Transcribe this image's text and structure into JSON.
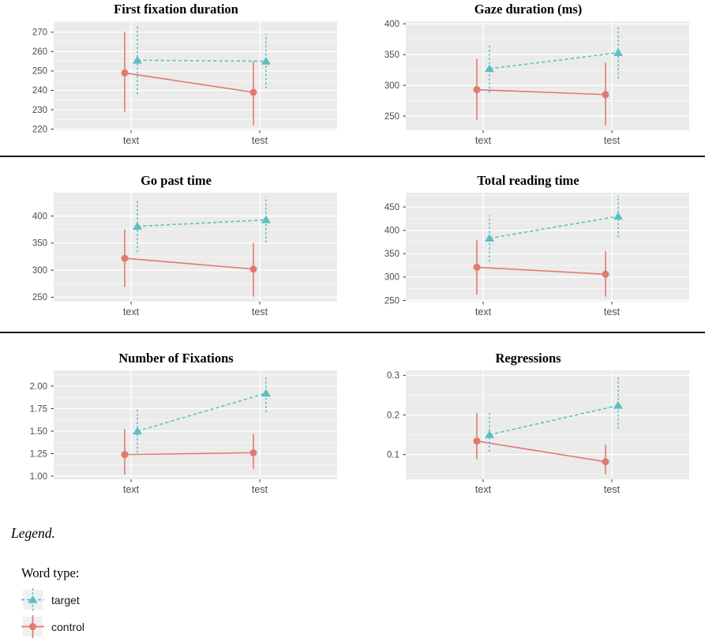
{
  "colors": {
    "target": "#5bbfc4",
    "control": "#e07a70",
    "panel_background": "#ebebeb",
    "gridline_major": "#ffffff",
    "gridline_minor": "#f5f5f5",
    "axis_text": "#4d4d4d",
    "tick_mark": "#333333",
    "separator": "#1a1a1a",
    "legend_key_background": "#f0f0f0"
  },
  "legend": {
    "caption": "Legend.",
    "title": "Word type:",
    "items": [
      {
        "label": "target",
        "marker": "triangle",
        "line_style": "dashed",
        "color_key": "target"
      },
      {
        "label": "control",
        "marker": "circle",
        "line_style": "solid",
        "color_key": "control"
      }
    ]
  },
  "chart_data": [
    {
      "type": "line",
      "title": "First fixation duration",
      "categories": [
        "text",
        "test"
      ],
      "ylim": [
        219.4,
        275.6
      ],
      "yticks": [
        220,
        230,
        240,
        250,
        260,
        270
      ],
      "ytick_labels": [
        "220",
        "230",
        "240",
        "250",
        "260",
        "270"
      ],
      "grid": true,
      "series": [
        {
          "name": "control",
          "marker": "circle",
          "line_style": "solid",
          "color_key": "control",
          "x_offset": -8,
          "values": [
            249,
            239
          ],
          "err_low": [
            229,
            222
          ],
          "err_high": [
            270,
            255
          ]
        },
        {
          "name": "target",
          "marker": "triangle",
          "line_style": "dashed",
          "color_key": "target",
          "x_offset": 8,
          "values": [
            255.5,
            255
          ],
          "err_low": [
            238,
            241
          ],
          "err_high": [
            273,
            269
          ]
        }
      ]
    },
    {
      "type": "line",
      "title": "Gaze duration (ms)",
      "categories": [
        "text",
        "test"
      ],
      "ylim": [
        227,
        404
      ],
      "yticks": [
        250,
        300,
        350,
        400
      ],
      "ytick_labels": [
        "250",
        "300",
        "350",
        "400"
      ],
      "grid": true,
      "series": [
        {
          "name": "control",
          "marker": "circle",
          "line_style": "solid",
          "color_key": "control",
          "x_offset": -8,
          "values": [
            293,
            285
          ],
          "err_low": [
            244,
            235
          ],
          "err_high": [
            343,
            337
          ]
        },
        {
          "name": "target",
          "marker": "triangle",
          "line_style": "dashed",
          "color_key": "target",
          "x_offset": 8,
          "values": [
            327,
            353
          ],
          "err_low": [
            288,
            311
          ],
          "err_high": [
            366,
            396
          ]
        }
      ]
    },
    {
      "type": "line",
      "title": "Go past time",
      "categories": [
        "text",
        "test"
      ],
      "ylim": [
        241.8,
        443.2
      ],
      "yticks": [
        250,
        300,
        350,
        400
      ],
      "ytick_labels": [
        "250",
        "300",
        "350",
        "400"
      ],
      "grid": true,
      "series": [
        {
          "name": "control",
          "marker": "circle",
          "line_style": "solid",
          "color_key": "control",
          "x_offset": -8,
          "values": [
            322,
            302
          ],
          "err_low": [
            269,
            251
          ],
          "err_high": [
            375,
            350
          ]
        },
        {
          "name": "target",
          "marker": "triangle",
          "line_style": "dashed",
          "color_key": "target",
          "x_offset": 8,
          "values": [
            381,
            393
          ],
          "err_low": [
            333,
            351
          ],
          "err_high": [
            428,
            435
          ]
        }
      ]
    },
    {
      "type": "line",
      "title": "Total reading time",
      "categories": [
        "text",
        "test"
      ],
      "ylim": [
        247.4,
        480.6
      ],
      "yticks": [
        250,
        300,
        350,
        400,
        450
      ],
      "ytick_labels": [
        "250",
        "300",
        "350",
        "400",
        "450"
      ],
      "grid": true,
      "series": [
        {
          "name": "control",
          "marker": "circle",
          "line_style": "solid",
          "color_key": "control",
          "x_offset": -8,
          "values": [
            321,
            306
          ],
          "err_low": [
            263,
            258
          ],
          "err_high": [
            380,
            355
          ]
        },
        {
          "name": "target",
          "marker": "triangle",
          "line_style": "dashed",
          "color_key": "target",
          "x_offset": 8,
          "values": [
            383,
            430
          ],
          "err_low": [
            333,
            385
          ],
          "err_high": [
            432,
            475
          ]
        }
      ]
    },
    {
      "type": "line",
      "title": "Number of Fixations",
      "categories": [
        "text",
        "test"
      ],
      "ylim": [
        0.965,
        2.175
      ],
      "yticks": [
        1.0,
        1.25,
        1.5,
        1.75,
        2.0
      ],
      "ytick_labels": [
        "1.00",
        "1.25",
        "1.50",
        "1.75",
        "2.00"
      ],
      "grid": true,
      "series": [
        {
          "name": "control",
          "marker": "circle",
          "line_style": "solid",
          "color_key": "control",
          "x_offset": -8,
          "values": [
            1.24,
            1.26
          ],
          "err_low": [
            1.02,
            1.08
          ],
          "err_high": [
            1.52,
            1.47
          ]
        },
        {
          "name": "target",
          "marker": "triangle",
          "line_style": "dashed",
          "color_key": "target",
          "x_offset": 8,
          "values": [
            1.5,
            1.92
          ],
          "err_low": [
            1.26,
            1.71
          ],
          "err_high": [
            1.74,
            2.12
          ]
        }
      ]
    },
    {
      "type": "line",
      "title": "Regressions",
      "categories": [
        "text",
        "test"
      ],
      "ylim": [
        0.0375,
        0.3125
      ],
      "yticks": [
        0.1,
        0.2,
        0.3
      ],
      "ytick_labels": [
        "0.1",
        "0.2",
        "0.3"
      ],
      "grid": true,
      "series": [
        {
          "name": "control",
          "marker": "circle",
          "line_style": "solid",
          "color_key": "control",
          "x_offset": -8,
          "values": [
            0.134,
            0.082
          ],
          "err_low": [
            0.088,
            0.05
          ],
          "err_high": [
            0.205,
            0.125
          ]
        },
        {
          "name": "target",
          "marker": "triangle",
          "line_style": "dashed",
          "color_key": "target",
          "x_offset": 8,
          "values": [
            0.15,
            0.224
          ],
          "err_low": [
            0.107,
            0.165
          ],
          "err_high": [
            0.207,
            0.3
          ]
        }
      ]
    }
  ]
}
